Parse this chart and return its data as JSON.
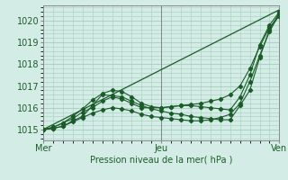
{
  "title": "Pression niveau de la mer( hPa )",
  "bg_color": "#d4ece6",
  "grid_color": "#a8ccbe",
  "line_color": "#1a5c28",
  "xlim": [
    0,
    48
  ],
  "ylim": [
    1014.5,
    1020.7
  ],
  "yticks": [
    1015,
    1016,
    1017,
    1018,
    1019,
    1020
  ],
  "xtick_labels": [
    "Mer",
    "Jeu",
    "Ven"
  ],
  "xtick_positions": [
    0,
    24,
    48
  ],
  "vlines": [
    0,
    24,
    48
  ],
  "series": [
    {
      "x": [
        0,
        2,
        4,
        6,
        8,
        10,
        12,
        14,
        16,
        18,
        20,
        22,
        24,
        26,
        28,
        30,
        32,
        34,
        36,
        38,
        40,
        42,
        44,
        46,
        48
      ],
      "y": [
        1015.0,
        1015.1,
        1015.3,
        1015.5,
        1015.8,
        1016.0,
        1016.3,
        1016.5,
        1016.4,
        1016.2,
        1016.0,
        1016.0,
        1016.0,
        1016.05,
        1016.1,
        1016.15,
        1016.2,
        1016.3,
        1016.4,
        1016.6,
        1017.0,
        1017.8,
        1018.8,
        1019.7,
        1020.2
      ],
      "marker": true
    },
    {
      "x": [
        0,
        2,
        4,
        6,
        8,
        10,
        12,
        14,
        16,
        18,
        20,
        22,
        24,
        26,
        28,
        30,
        32,
        34,
        36,
        38,
        40,
        42,
        44,
        46,
        48
      ],
      "y": [
        1015.0,
        1015.05,
        1015.15,
        1015.35,
        1015.55,
        1015.75,
        1015.9,
        1016.0,
        1015.95,
        1015.85,
        1015.7,
        1015.6,
        1015.55,
        1015.5,
        1015.45,
        1015.4,
        1015.4,
        1015.45,
        1015.55,
        1015.7,
        1016.2,
        1017.2,
        1018.4,
        1019.5,
        1020.3
      ],
      "marker": true
    },
    {
      "x": [
        0,
        2,
        4,
        6,
        8,
        10,
        12,
        14,
        16,
        18,
        20,
        22,
        24,
        26,
        28,
        30,
        32,
        34,
        36,
        38,
        40,
        42,
        44,
        46,
        48
      ],
      "y": [
        1015.0,
        1015.05,
        1015.15,
        1015.4,
        1015.6,
        1016.1,
        1016.6,
        1016.55,
        1016.5,
        1016.3,
        1016.1,
        1015.95,
        1015.85,
        1015.75,
        1015.7,
        1015.6,
        1015.55,
        1015.5,
        1015.45,
        1015.45,
        1016.1,
        1016.8,
        1018.3,
        1019.6,
        1020.35
      ],
      "marker": true
    },
    {
      "x": [
        0,
        48
      ],
      "y": [
        1015.0,
        1020.5
      ],
      "marker": false
    },
    {
      "x": [
        0,
        2,
        4,
        6,
        8,
        10,
        12,
        14,
        16,
        18,
        20,
        22,
        24,
        26,
        28,
        30,
        32,
        34,
        36,
        38,
        40,
        42,
        44,
        46,
        48
      ],
      "y": [
        1015.0,
        1015.1,
        1015.3,
        1015.6,
        1015.95,
        1016.35,
        1016.65,
        1016.8,
        1016.75,
        1016.5,
        1016.2,
        1016.05,
        1016.0,
        1016.05,
        1016.1,
        1016.1,
        1016.05,
        1016.0,
        1015.95,
        1015.9,
        1016.5,
        1017.5,
        1018.9,
        1019.8,
        1020.4
      ],
      "marker": true
    }
  ]
}
